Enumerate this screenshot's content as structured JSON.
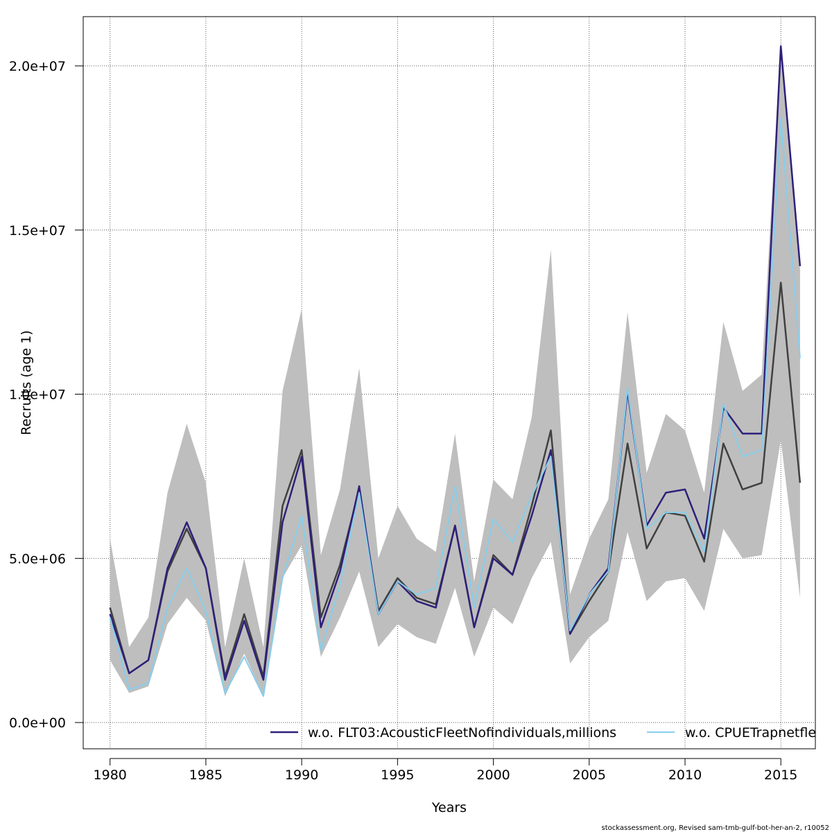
{
  "chart_data": {
    "type": "line",
    "title": "",
    "xlabel": "Years",
    "ylabel": "Recruits (age 1)",
    "xlim": [
      1978.6,
      2016.8
    ],
    "ylim": [
      -800000,
      21500000
    ],
    "x_ticks": [
      1980,
      1985,
      1990,
      1995,
      2000,
      2005,
      2010,
      2015
    ],
    "x_tick_labels": [
      "1980",
      "1985",
      "1990",
      "1995",
      "2000",
      "2005",
      "2010",
      "2015"
    ],
    "y_ticks": [
      0,
      5000000,
      10000000,
      15000000,
      20000000
    ],
    "y_tick_labels": [
      "0.0e+00",
      "5.0e+06",
      "1.0e+07",
      "1.5e+07",
      "2.0e+07"
    ],
    "grid": true,
    "legend_position": "bottom-right",
    "x": [
      1980,
      1981,
      1982,
      1983,
      1984,
      1985,
      1986,
      1987,
      1988,
      1989,
      1990,
      1991,
      1992,
      1993,
      1994,
      1995,
      1996,
      1997,
      1998,
      1999,
      2000,
      2001,
      2002,
      2003,
      2004,
      2005,
      2006,
      2007,
      2008,
      2009,
      2010,
      2011,
      2012,
      2013,
      2014,
      2015,
      2016
    ],
    "band": {
      "color": "#bebebe",
      "upper": [
        5600000,
        2300000,
        3200000,
        7000000,
        9100000,
        7300000,
        2300000,
        5000000,
        2300000,
        10100000,
        12600000,
        5100000,
        7100000,
        10800000,
        5000000,
        6600000,
        5600000,
        5200000,
        8800000,
        4300000,
        7400000,
        6800000,
        9300000,
        14400000,
        3900000,
        5600000,
        6800000,
        12500000,
        7600000,
        9400000,
        8900000,
        7000000,
        12200000,
        10100000,
        10600000,
        20800000,
        13800000
      ],
      "lower": [
        1900000,
        900000,
        1100000,
        3000000,
        3800000,
        3100000,
        800000,
        2100000,
        800000,
        4400000,
        5400000,
        2000000,
        3200000,
        4600000,
        2300000,
        3000000,
        2600000,
        2400000,
        4100000,
        2000000,
        3500000,
        3000000,
        4400000,
        5500000,
        1800000,
        2600000,
        3100000,
        5800000,
        3700000,
        4300000,
        4400000,
        3400000,
        5900000,
        5000000,
        5100000,
        8600000,
        3800000
      ]
    },
    "series": [
      {
        "color": "#404040",
        "width": 2.5,
        "values": [
          3500000,
          1500000,
          1900000,
          4600000,
          5900000,
          4700000,
          1400000,
          3300000,
          1400000,
          6600000,
          8300000,
          3200000,
          4800000,
          7100000,
          3400000,
          4400000,
          3800000,
          3600000,
          6000000,
          2900000,
          5100000,
          4500000,
          6600000,
          8900000,
          2700000,
          3700000,
          4600000,
          8500000,
          5300000,
          6400000,
          6300000,
          4900000,
          8500000,
          7100000,
          7300000,
          13400000,
          7300000
        ]
      },
      {
        "name": "w.o. FLT03:AcousticFleetNofindividuals,millions",
        "color": "#2e1f7a",
        "width": 2.5,
        "values": [
          3300000,
          1500000,
          1900000,
          4700000,
          6100000,
          4700000,
          1300000,
          3100000,
          1300000,
          6100000,
          8100000,
          2900000,
          4600000,
          7200000,
          3300000,
          4300000,
          3700000,
          3500000,
          6000000,
          2900000,
          5000000,
          4500000,
          6300000,
          8300000,
          2700000,
          3900000,
          4700000,
          10100000,
          6000000,
          7000000,
          7100000,
          5600000,
          9600000,
          8800000,
          8800000,
          20600000,
          13900000
        ]
      },
      {
        "name": "w.o. CPUETrapnetfleet",
        "color": "#87ceeb",
        "width": 2,
        "values": [
          3200000,
          1000000,
          1200000,
          3500000,
          4700000,
          3400000,
          900000,
          2000000,
          800000,
          4400000,
          6300000,
          2200000,
          4200000,
          7000000,
          3300000,
          4300000,
          3900000,
          4100000,
          7200000,
          3500000,
          6200000,
          5500000,
          6900000,
          8100000,
          2800000,
          3900000,
          4600000,
          10200000,
          5900000,
          6400000,
          6400000,
          5200000,
          9700000,
          8100000,
          8300000,
          18400000,
          11100000
        ]
      }
    ],
    "legend_text_1": "w.o. FLT03:AcousticFleetNofindividuals,millions",
    "legend_text_2": "w.o. CPUETrapnetfle"
  },
  "footer": "stockassessment.org, Revised  sam-tmb-gulf-bot-her-an-2, r10052"
}
